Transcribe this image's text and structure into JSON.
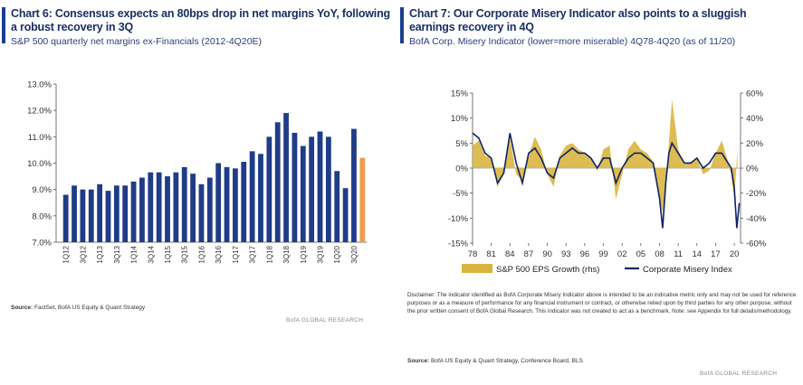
{
  "chart_data": [
    {
      "type": "bar",
      "title": "Chart 6: Consensus expects an 80bps drop in net margins YoY, following a robust recovery in 3Q",
      "subtitle": "S&P 500 quarterly net margins ex-Financials (2012-4Q20E)",
      "xlabel": "",
      "ylabel": "",
      "ylim": [
        7.0,
        13.0
      ],
      "yticks": [
        "13.0%",
        "12.0%",
        "11.0%",
        "10.0%",
        "9.0%",
        "8.0%",
        "7.0%"
      ],
      "yticks_values": [
        13,
        12,
        11,
        10,
        9,
        8,
        7
      ],
      "categories": [
        "1Q12",
        "2Q12",
        "3Q12",
        "4Q12",
        "1Q13",
        "2Q13",
        "3Q13",
        "4Q13",
        "1Q14",
        "2Q14",
        "3Q14",
        "4Q14",
        "1Q15",
        "2Q15",
        "3Q15",
        "4Q15",
        "1Q16",
        "2Q16",
        "3Q16",
        "4Q16",
        "1Q17",
        "2Q17",
        "3Q17",
        "4Q17",
        "1Q18",
        "2Q18",
        "3Q18",
        "4Q18",
        "1Q19",
        "2Q19",
        "3Q19",
        "4Q19",
        "1Q20",
        "2Q20",
        "3Q20",
        "4Q20"
      ],
      "xtick_labels": [
        "1Q12",
        "3Q12",
        "1Q13",
        "3Q13",
        "1Q14",
        "3Q14",
        "1Q15",
        "3Q15",
        "1Q16",
        "3Q16",
        "1Q17",
        "3Q17",
        "1Q18",
        "3Q18",
        "1Q19",
        "3Q19",
        "1Q20",
        "3Q20"
      ],
      "values": [
        8.8,
        9.15,
        9.0,
        9.0,
        9.2,
        8.95,
        9.15,
        9.15,
        9.3,
        9.45,
        9.65,
        9.65,
        9.5,
        9.65,
        9.85,
        9.6,
        9.2,
        9.45,
        10.0,
        9.85,
        9.8,
        10.05,
        10.45,
        10.35,
        11.0,
        11.55,
        11.9,
        11.15,
        10.65,
        11.0,
        11.2,
        11.0,
        9.7,
        9.05,
        11.3,
        10.2
      ],
      "highlight_index": 35,
      "colors": {
        "bar": "#1f3c88",
        "estimate": "#f2994a"
      },
      "source_label": "Source:",
      "source_text": "FactSet, BofA US Equity & Quant Strategy",
      "brand": "BofA GLOBAL RESEARCH"
    },
    {
      "type": "line",
      "title": "Chart 7: Our Corporate Misery Indicator also points to a sluggish earnings recovery in 4Q",
      "subtitle": "BofA Corp. Misery Indicator (lower=more miserable) 4Q78-4Q20 (as of 11/20)",
      "ylim_left": [
        -15,
        15
      ],
      "ylim_right": [
        -60,
        60
      ],
      "yticks_left": [
        "15%",
        "10%",
        "5%",
        "0%",
        "-5%",
        "-10%",
        "-15%"
      ],
      "yticks_left_values": [
        15,
        10,
        5,
        0,
        -5,
        -10,
        -15
      ],
      "yticks_right": [
        "60%",
        "40%",
        "20%",
        "0%",
        "-20%",
        "-40%",
        "-60%"
      ],
      "yticks_right_values": [
        60,
        40,
        20,
        0,
        -20,
        -40,
        -60
      ],
      "xlim": [
        1978,
        2021
      ],
      "xtick_labels": [
        "78",
        "81",
        "84",
        "87",
        "90",
        "93",
        "96",
        "99",
        "02",
        "05",
        "08",
        "11",
        "14",
        "17",
        "20"
      ],
      "xtick_values": [
        1978,
        1981,
        1984,
        1987,
        1990,
        1993,
        1996,
        1999,
        2002,
        2005,
        2008,
        2011,
        2014,
        2017,
        2020
      ],
      "series": [
        {
          "name": "S&P 500 EPS Growth (rhs)",
          "kind": "area",
          "axis": "right",
          "color": "#d9b53f",
          "x": [
            1978,
            1979,
            1980,
            1981,
            1982,
            1983,
            1984,
            1985,
            1986,
            1987,
            1988,
            1989,
            1990,
            1991,
            1992,
            1993,
            1994,
            1995,
            1996,
            1997,
            1998,
            1999,
            2000,
            2001,
            2002,
            2003,
            2004,
            2005,
            2006,
            2007,
            2008,
            2008.5,
            2009,
            2009.5,
            2010,
            2011,
            2012,
            2013,
            2014,
            2015,
            2016,
            2017,
            2018,
            2019,
            2019.5,
            2020,
            2020.5
          ],
          "y": [
            18,
            22,
            10,
            8,
            -15,
            -5,
            25,
            -5,
            -10,
            10,
            25,
            15,
            -5,
            -15,
            10,
            18,
            20,
            15,
            12,
            8,
            -2,
            15,
            18,
            -25,
            -5,
            15,
            22,
            15,
            12,
            5,
            -25,
            -35,
            -15,
            20,
            55,
            15,
            3,
            5,
            8,
            -5,
            -2,
            12,
            22,
            5,
            -5,
            -25,
            15
          ]
        },
        {
          "name": "Corporate Misery Index",
          "kind": "line",
          "axis": "left",
          "color": "#0d2366",
          "x": [
            1978,
            1979,
            1980,
            1981,
            1982,
            1983,
            1984,
            1985,
            1986,
            1987,
            1988,
            1989,
            1990,
            1991,
            1992,
            1993,
            1994,
            1995,
            1996,
            1997,
            1998,
            1999,
            2000,
            2001,
            2002,
            2003,
            2004,
            2005,
            2006,
            2007,
            2008,
            2008.5,
            2009,
            2009.5,
            2010,
            2011,
            2012,
            2013,
            2014,
            2015,
            2016,
            2017,
            2018,
            2019,
            2019.5,
            2020,
            2020.4,
            2020.8
          ],
          "y": [
            7,
            6,
            3,
            2,
            -3,
            -1,
            7,
            1,
            -3,
            3,
            4,
            2,
            -1,
            -2,
            2,
            3,
            4,
            3,
            3,
            2,
            0,
            2,
            2,
            -3,
            0,
            2,
            3,
            3,
            2,
            1,
            -6,
            -12,
            -3,
            3,
            5,
            3,
            1,
            1,
            2,
            0,
            1,
            3,
            3,
            1,
            0,
            -4,
            -12,
            -7
          ]
        }
      ],
      "legend": [
        "S&P 500 EPS Growth (rhs)",
        "Corporate Misery Index"
      ],
      "disclaimer": "Disclaimer: The indicator identified as BofA Corporate Misery Indicator above is intended to be an indicative metric only and may not be used for reference purposes or as a measure of performance for any financial instrument or contract, or otherwise relied upon by third parties for any other purpose, without the prior written consent of BofA Global Research. This indicator was not created to act as a benchmark. Note: see Appendix for full details/methodology.",
      "source_label": "Source:",
      "source_text": "BofA US Equity & Quant Strategy, Conference Board, BLS",
      "brand": "BofA GLOBAL RESEARCH"
    }
  ]
}
